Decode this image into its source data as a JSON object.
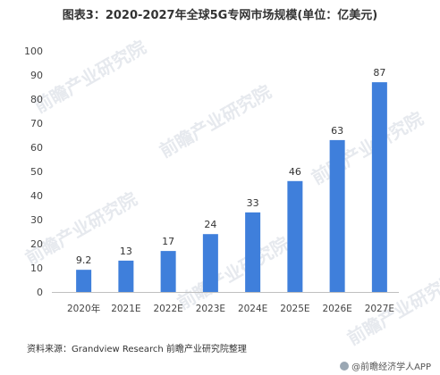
{
  "title": "图表3：2020-2027年全球5G专网市场规模(单位：亿美元)",
  "source": "资料来源：Grandview Research 前瞻产业研究院整理",
  "credit": "@前瞻经济学人APP",
  "watermark": "前瞻产业研究院",
  "colors": {
    "bar": "#3f7fdb",
    "axis": "#bfbfbf",
    "text": "#444444"
  },
  "chart_data": {
    "type": "bar",
    "categories": [
      "2020年",
      "2021E",
      "2022E",
      "2023E",
      "2024E",
      "2025E",
      "2026E",
      "2027E"
    ],
    "values": [
      9.2,
      13,
      17,
      24,
      33,
      46,
      63,
      87
    ],
    "value_labels": [
      "9.2",
      "13",
      "17",
      "24",
      "33",
      "46",
      "63",
      "87"
    ],
    "ylim": [
      0,
      100
    ],
    "yticks": [
      0,
      10,
      20,
      30,
      40,
      50,
      60,
      70,
      80,
      90,
      100
    ],
    "title": "图表3：2020-2027年全球5G专网市场规模(单位：亿美元)",
    "xlabel": "",
    "ylabel": "",
    "grid": false
  }
}
